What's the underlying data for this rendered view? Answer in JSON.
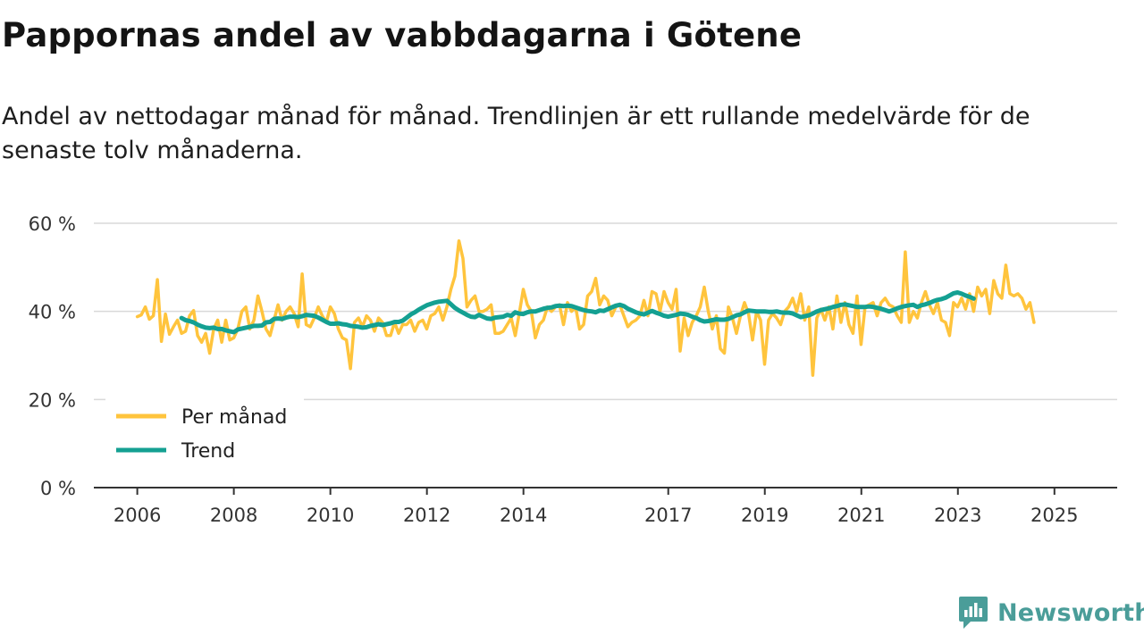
{
  "header": {
    "title": "Pappornas andel av vabbdagarna i Götene",
    "subtitle": "Andel av nettodagar månad för månad. Trendlinjen är ett rullande medelvärde för de senaste tolv månaderna."
  },
  "brand": {
    "name": "Newsworthy",
    "icon": "newsworthy-logo-icon",
    "color": "#4a9d99"
  },
  "chart_data": {
    "type": "line",
    "title": "Pappornas andel av vabbdagarna i Götene",
    "xlabel": "",
    "ylabel": "",
    "ylim": [
      0,
      60
    ],
    "y_ticks": [
      0,
      20,
      40,
      60
    ],
    "y_tick_labels": [
      "0 %",
      "20 %",
      "40 %",
      "60 %"
    ],
    "x_ticks": [
      2006,
      2008,
      2010,
      2012,
      2014,
      2017,
      2019,
      2021,
      2023,
      2025
    ],
    "x_tick_labels": [
      "2006",
      "2008",
      "2010",
      "2012",
      "2014",
      "2017",
      "2019",
      "2021",
      "2023",
      "2025"
    ],
    "xlim": [
      2005.1,
      2026.3
    ],
    "grid": true,
    "legend": "bottom-left",
    "series": [
      {
        "name": "Per månad",
        "color": "#ffc43d",
        "x_start": 2006.0,
        "x_step": 0.0833,
        "values": [
          38.8,
          39.2,
          41.0,
          38.2,
          39.0,
          47.2,
          33.2,
          39.4,
          34.8,
          36.5,
          38.0,
          35.0,
          35.5,
          39.0,
          40.2,
          34.5,
          33.0,
          35.0,
          30.5,
          36.0,
          38.0,
          33.0,
          38.0,
          33.5,
          34.0,
          36.0,
          40.0,
          41.0,
          36.0,
          38.0,
          43.5,
          40.0,
          36.0,
          34.5,
          38.0,
          41.5,
          38.0,
          40.0,
          41.0,
          39.5,
          36.5,
          48.5,
          37.0,
          36.5,
          38.5,
          41.0,
          39.0,
          37.5,
          41.0,
          39.5,
          36.0,
          34.0,
          33.5,
          27.0,
          37.5,
          38.5,
          36.5,
          39.0,
          38.0,
          35.5,
          38.5,
          37.5,
          34.5,
          34.5,
          37.5,
          35.0,
          37.0,
          37.0,
          38.0,
          35.5,
          37.5,
          38.0,
          36.0,
          39.0,
          39.5,
          41.0,
          38.0,
          41.0,
          45.0,
          48.0,
          56.0,
          52.0,
          41.0,
          42.5,
          43.5,
          40.0,
          40.0,
          40.5,
          41.5,
          35.0,
          35.0,
          35.5,
          37.0,
          38.5,
          34.5,
          39.5,
          45.0,
          41.5,
          40.0,
          34.0,
          37.0,
          38.0,
          41.0,
          40.0,
          41.0,
          41.5,
          37.0,
          42.0,
          40.0,
          41.0,
          36.0,
          37.0,
          43.5,
          44.5,
          47.5,
          41.5,
          43.5,
          42.5,
          39.0,
          41.0,
          41.5,
          39.0,
          36.5,
          37.5,
          38.0,
          39.0,
          42.5,
          39.0,
          44.5,
          44.0,
          40.0,
          44.5,
          42.0,
          40.5,
          45.0,
          31.0,
          38.5,
          34.5,
          37.5,
          39.0,
          41.0,
          45.5,
          40.0,
          36.0,
          39.0,
          31.5,
          30.5,
          41.0,
          38.5,
          35.0,
          39.0,
          42.0,
          39.5,
          33.5,
          40.0,
          38.0,
          28.0,
          38.0,
          39.5,
          38.5,
          37.0,
          40.0,
          41.0,
          43.0,
          40.0,
          44.0,
          38.0,
          41.0,
          25.5,
          38.5,
          40.5,
          38.0,
          41.0,
          36.0,
          43.5,
          37.5,
          42.0,
          37.0,
          35.0,
          43.5,
          32.5,
          41.0,
          41.5,
          42.0,
          39.0,
          42.0,
          43.0,
          41.5,
          41.0,
          39.0,
          37.5,
          53.5,
          37.5,
          40.0,
          38.5,
          42.0,
          44.5,
          41.5,
          39.5,
          42.0,
          38.0,
          37.5,
          34.5,
          42.0,
          41.0,
          43.0,
          40.5,
          44.0,
          40.0,
          45.5,
          43.5,
          45.0,
          39.5,
          47.0,
          44.0,
          43.0,
          50.5,
          44.0,
          43.5,
          44.0,
          43.0,
          40.5,
          42.0,
          37.5
        ]
      },
      {
        "name": "Trend",
        "color": "#14a092",
        "x_start": 2006.9167,
        "x_step": 0.0833,
        "values": [
          38.5,
          38.0,
          37.8,
          37.5,
          37.0,
          36.6,
          36.3,
          36.2,
          36.3,
          36.0,
          36.0,
          35.7,
          35.5,
          35.3,
          35.9,
          36.1,
          36.3,
          36.5,
          36.7,
          36.7,
          36.8,
          37.5,
          37.6,
          38.3,
          38.4,
          38.3,
          38.6,
          38.8,
          38.8,
          38.7,
          38.9,
          39.2,
          39.1,
          39.0,
          38.6,
          38.1,
          37.6,
          37.2,
          37.2,
          37.3,
          37.1,
          37.0,
          36.7,
          36.6,
          36.5,
          36.3,
          36.4,
          36.7,
          36.9,
          37.1,
          36.9,
          37.1,
          37.3,
          37.6,
          37.6,
          37.9,
          38.6,
          39.3,
          39.8,
          40.4,
          40.9,
          41.4,
          41.7,
          42.0,
          42.2,
          42.3,
          42.4,
          41.6,
          40.8,
          40.2,
          39.7,
          39.2,
          38.8,
          38.7,
          39.2,
          38.8,
          38.4,
          38.3,
          38.6,
          38.7,
          38.8,
          39.2,
          39.0,
          39.8,
          39.5,
          39.4,
          39.8,
          40.0,
          40.0,
          40.3,
          40.6,
          40.8,
          40.9,
          41.2,
          41.3,
          41.2,
          41.3,
          41.2,
          40.9,
          40.6,
          40.3,
          40.1,
          40.0,
          39.8,
          40.2,
          40.1,
          40.5,
          40.9,
          41.3,
          41.5,
          41.2,
          40.6,
          40.2,
          39.8,
          39.5,
          39.3,
          39.7,
          40.1,
          39.7,
          39.4,
          39.0,
          38.8,
          39.0,
          39.2,
          39.5,
          39.4,
          39.2,
          38.8,
          38.5,
          38.0,
          37.7,
          37.8,
          38.0,
          38.2,
          38.1,
          38.1,
          38.3,
          38.7,
          39.1,
          39.3,
          39.8,
          40.2,
          40.1,
          40.0,
          40.0,
          40.0,
          39.9,
          39.9,
          40.0,
          39.8,
          39.7,
          39.7,
          39.5,
          39.1,
          38.7,
          38.9,
          39.1,
          39.5,
          40.0,
          40.3,
          40.5,
          40.7,
          41.0,
          41.2,
          41.5,
          41.6,
          41.4,
          41.2,
          41.0,
          41.0,
          41.0,
          41.1,
          41.0,
          40.8,
          40.6,
          40.3,
          40.0,
          40.3,
          40.7,
          41.0,
          41.2,
          41.4,
          41.5,
          41.0,
          41.4,
          41.6,
          41.9,
          42.3,
          42.6,
          42.8,
          43.1,
          43.6,
          44.1,
          44.3,
          44.0,
          43.6,
          43.3,
          42.9
        ]
      }
    ]
  }
}
